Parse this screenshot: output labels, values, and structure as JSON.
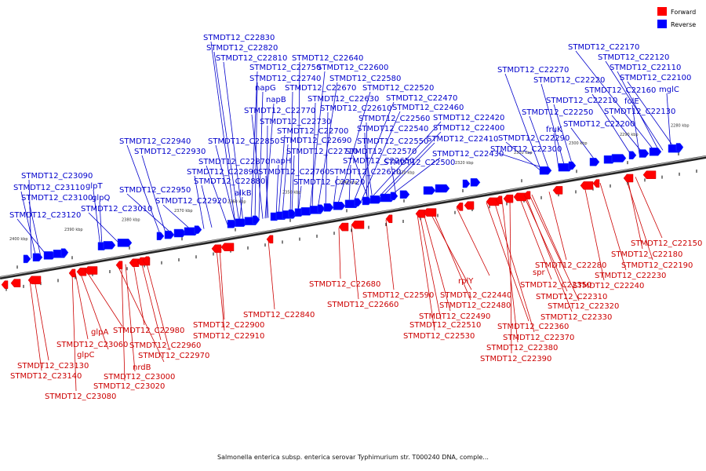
{
  "legend": [
    {
      "label": "Forward",
      "color": "#ff0000"
    },
    {
      "label": "Reverse",
      "color": "#0000ff"
    }
  ],
  "ticks": [
    "2280 kbp",
    "2290 kbp",
    "2300 kbp",
    "2310 kbp",
    "2320 kbp",
    "2330 kbp",
    "2340 kbp",
    "2350 kbp",
    "2360 kbp",
    "2370 kbp",
    "2380 kbp",
    "2390 kbp",
    "2400 kbp"
  ],
  "reverse_labels": [
    "STMDT12_C22830",
    "STMDT12_C22820",
    "STMDT12_C22810",
    "STMDT12_C22640",
    "STMDT12_C22750",
    "STMDT12_C22600",
    "STMDT12_C22740",
    "STMDT12_C22580",
    "napG",
    "STMDT12_C22670",
    "STMDT12_C22520",
    "napB",
    "STMDT12_C22630",
    "STMDT12_C22470",
    "STMDT12_C22770",
    "STMDT12_C22610",
    "STMDT12_C22460",
    "STMDT12_C22730",
    "STMDT12_C22560",
    "STMDT12_C22420",
    "STMDT12_C22700",
    "STMDT12_C22540",
    "STMDT12_C22400",
    "STMDT12_C22690",
    "STMDT12_C22550",
    "STMDT12_C22410",
    "STMDT12_C22940",
    "STMDT12_C22850",
    "STMDT12_C22710",
    "STMDT12_C22570",
    "STMDT12_C22430",
    "STMDT12_C22930",
    "napH",
    "STMDT12_C22650",
    "STMDT12_C22500",
    "STMDT12_C22870",
    "STMDT12_C22760",
    "STMDT12_C22620",
    "STMDT12_C22890",
    "STMDT12_C22880",
    "STMDT12_C22720",
    "STMDT12_C23090",
    "STMDT12_C23110",
    "glpT",
    "STMDT12_C22950",
    "STMDT12_C23100",
    "glpQ",
    "alkB",
    "STMDT12_C22920",
    "STMDT12_C23010",
    "STMDT12_C23120",
    "STMDT12_C22170",
    "STMDT12_C22120",
    "STMDT12_C22110",
    "STMDT12_C22270",
    "STMDT12_C22100",
    "STMDT12_C22220",
    "STMDT12_C22160",
    "mglC",
    "STMDT12_C22210",
    "folE",
    "STMDT12_C22250",
    "STMDT12_C22130",
    "fruK",
    "STMDT12_C22200",
    "STMDT12_C22290",
    "STMDT12_C22300"
  ],
  "forward_labels": [
    "STMDT12_C22150",
    "STMDT12_C22180",
    "STMDT12_C22190",
    "STMDT12_C22280",
    "STMDT12_C22230",
    "STMDT12_C22240",
    "spr",
    "STMDT12_C22350",
    "STMDT12_C22310",
    "STMDT12_C22320",
    "STMDT12_C22330",
    "STMDT12_C22360",
    "STMDT12_C22370",
    "STMDT12_C22380",
    "STMDT12_C22390",
    "STMDT12_C22680",
    "rplY",
    "STMDT12_C22590",
    "STMDT12_C22440",
    "STMDT12_C22660",
    "STMDT12_C22480",
    "STMDT12_C22490",
    "STMDT12_C22510",
    "STMDT12_C22530",
    "STMDT12_C22840",
    "STMDT12_C22900",
    "STMDT12_C22910",
    "glpA",
    "STMDT12_C22980",
    "STMDT12_C23060",
    "STMDT12_C22960",
    "glpC",
    "STMDT12_C22970",
    "nrdB",
    "STMDT12_C23130",
    "STMDT12_C23000",
    "STMDT12_C23140",
    "STMDT12_C23020",
    "STMDT12_C23080"
  ],
  "caption": "Salmonella enterica subsp. enterica serovar Typhimurium str. T000240 DNA, comple..."
}
